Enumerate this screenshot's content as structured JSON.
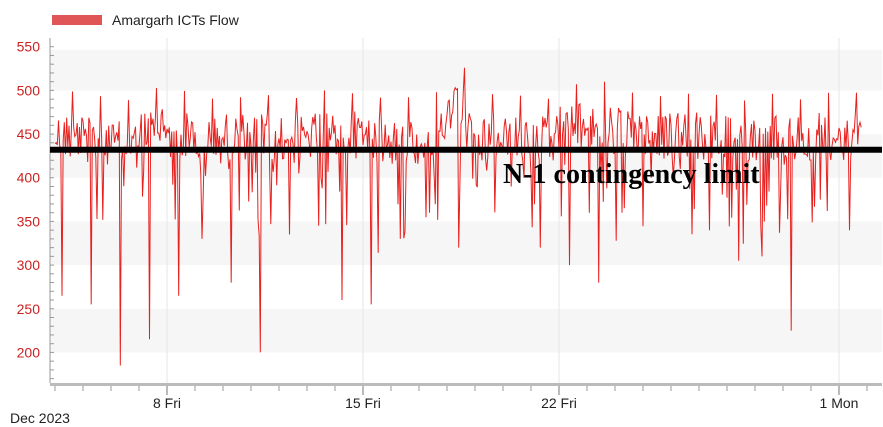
{
  "chart_data": {
    "type": "line",
    "title": "",
    "xlabel": "",
    "ylabel": "",
    "legend": {
      "label": "Amargarh ICTs Flow",
      "placement": "top-left",
      "color": "#e05555"
    },
    "month_label": "Dec 2023",
    "x_ticks": [
      "8 Fri",
      "15 Fri",
      "22 Fri",
      "1 Mon"
    ],
    "y_ticks": [
      200,
      250,
      300,
      350,
      400,
      450,
      500,
      550
    ],
    "ylim": [
      165,
      560
    ],
    "xlim_days": [
      "2023-12-04",
      "2024-01-02"
    ],
    "series_color": "#e8201e",
    "grid": "alternating horizontal bands",
    "limit_line": {
      "value": 432,
      "label": "N-1 contingency limit",
      "color": "#000000"
    },
    "series": [
      {
        "name": "Amargarh ICTs Flow",
        "x": [
          "12-04",
          "12-05",
          "12-06",
          "12-07",
          "12-08",
          "12-09",
          "12-10",
          "12-11",
          "12-12",
          "12-13",
          "12-14",
          "12-15",
          "12-16",
          "12-17",
          "12-18",
          "12-19",
          "12-20",
          "12-21",
          "12-22",
          "12-23",
          "12-24",
          "12-25",
          "12-26",
          "12-27",
          "12-28",
          "12-29",
          "12-30",
          "12-31",
          "01-01",
          "01-02"
        ],
        "typical_high": [
          500,
          495,
          490,
          505,
          500,
          495,
          500,
          498,
          495,
          500,
          502,
          497,
          495,
          500,
          530,
          498,
          495,
          498,
          510,
          515,
          505,
          500,
          500,
          498,
          495,
          500,
          495,
          500,
          498,
          490
        ],
        "daily_min": [
          265,
          255,
          185,
          215,
          265,
          330,
          280,
          200,
          335,
          345,
          260,
          255,
          330,
          360,
          320,
          420,
          390,
          320,
          300,
          280,
          360,
          400,
          410,
          340,
          305,
          310,
          225,
          375,
          340,
          395
        ]
      }
    ]
  }
}
